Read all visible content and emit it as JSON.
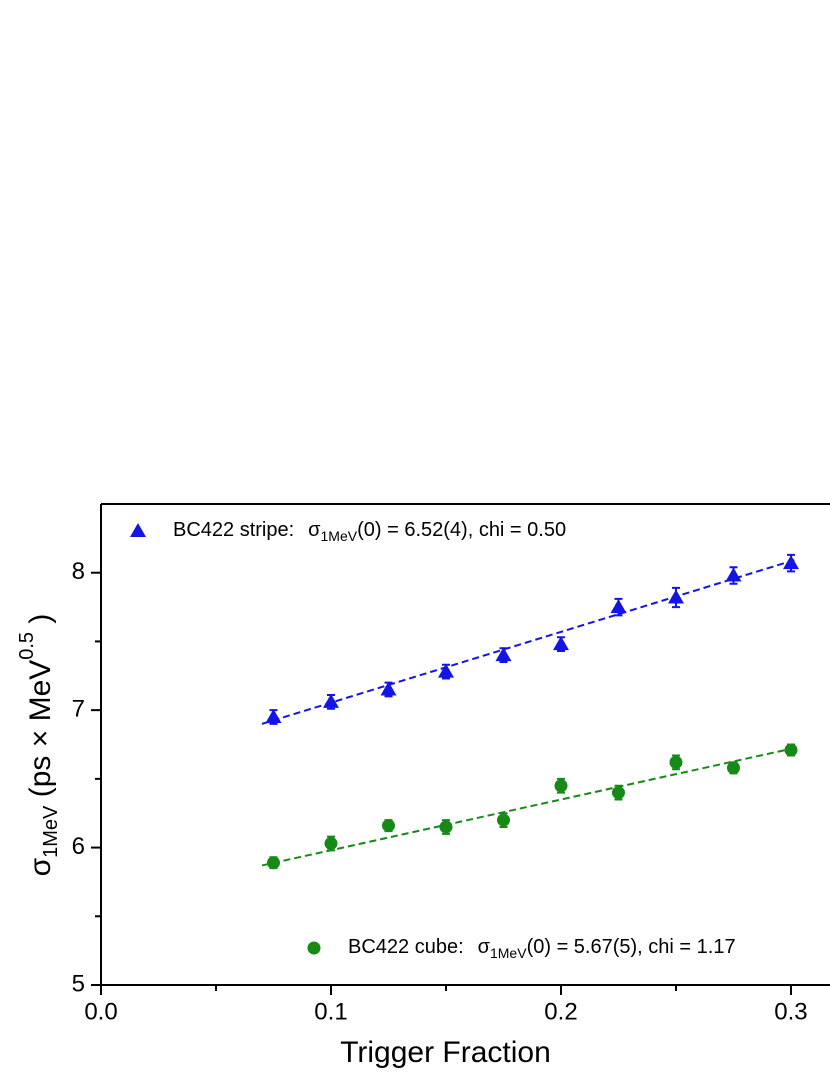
{
  "chart_data": {
    "type": "scatter",
    "xlabel": "Trigger Fraction",
    "ylabel": [
      "σ",
      "1MeV",
      " (ps × MeV",
      "0.5",
      " )"
    ],
    "xlim": [
      0,
      0.3174
    ],
    "ylim": [
      5,
      8.5
    ],
    "xticks": [
      {
        "value": 0,
        "label": "0.0"
      },
      0.1,
      0.2,
      0.3
    ],
    "yticks": [
      5,
      6,
      7,
      8
    ],
    "xminor": [
      0.05,
      0.15,
      0.25
    ],
    "yminor": [
      5.5,
      6.5,
      7.5
    ],
    "series": [
      {
        "name": "BC422 stripe:",
        "fit_label": [
          "σ",
          "1MeV",
          "(0) = 6.52(4), chi = 0.50"
        ],
        "color": "#1414e6",
        "marker": "triangle",
        "x": [
          0.075,
          0.1,
          0.125,
          0.15,
          0.175,
          0.2,
          0.225,
          0.25,
          0.275,
          0.3
        ],
        "values": [
          6.95,
          7.06,
          7.15,
          7.28,
          7.4,
          7.48,
          7.75,
          7.82,
          7.98,
          8.07
        ],
        "errors": [
          0.05,
          0.05,
          0.05,
          0.05,
          0.05,
          0.05,
          0.06,
          0.07,
          0.06,
          0.06
        ],
        "fit": {
          "x": [
            0.07,
            0.303
          ],
          "values": [
            6.9,
            8.1
          ]
        }
      },
      {
        "name": "BC422 cube:",
        "fit_label": [
          "σ",
          "1MeV",
          "(0) = 5.67(5), chi = 1.17"
        ],
        "color": "#168a16",
        "marker": "circle",
        "x": [
          0.075,
          0.1,
          0.125,
          0.15,
          0.175,
          0.2,
          0.225,
          0.25,
          0.275,
          0.3
        ],
        "values": [
          5.89,
          6.03,
          6.16,
          6.15,
          6.2,
          6.45,
          6.4,
          6.62,
          6.58,
          6.71
        ],
        "errors": [
          0.04,
          0.05,
          0.04,
          0.05,
          0.05,
          0.05,
          0.05,
          0.05,
          0.04,
          0.04
        ],
        "fit": {
          "x": [
            0.07,
            0.303
          ],
          "values": [
            5.87,
            6.73
          ]
        }
      }
    ]
  }
}
